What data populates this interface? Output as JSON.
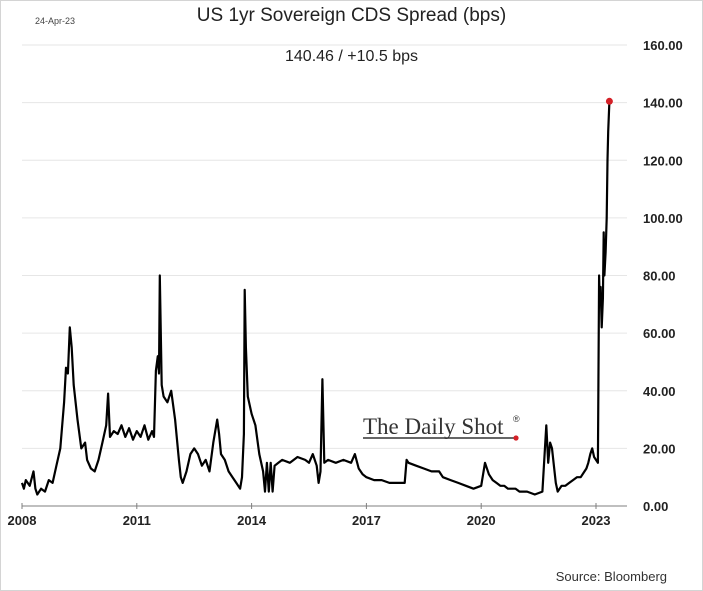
{
  "header": {
    "date": "24-Apr-23",
    "title": "US 1yr Sovereign CDS Spread (bps)",
    "subtitle": "140.46  /  +10.5 bps"
  },
  "footer": {
    "source": "Source: Bloomberg"
  },
  "watermark": {
    "text": "The Daily Shot",
    "mark": "®"
  },
  "colors": {
    "line": "#000000",
    "endpoint": "#d42027",
    "grid": "#e6e6e6",
    "axis": "#7f7f7f"
  },
  "chart_data": {
    "type": "line",
    "title": "US 1yr Sovereign CDS Spread (bps)",
    "xlabel": "",
    "ylabel": "",
    "xlim": [
      2008,
      2023.9
    ],
    "ylim": [
      0,
      160
    ],
    "grid": true,
    "y_axis_side": "right",
    "x_ticks": [
      2008,
      2011,
      2014,
      2017,
      2020,
      2023
    ],
    "x_tick_labels": [
      "2008",
      "2011",
      "2014",
      "2017",
      "2020",
      "2023"
    ],
    "y_ticks": [
      0,
      20,
      40,
      60,
      80,
      100,
      120,
      140,
      160
    ],
    "y_tick_labels": [
      "0.00",
      "20.00",
      "40.00",
      "60.00",
      "80.00",
      "100.00",
      "120.00",
      "140.00",
      "160.00"
    ],
    "last_value": 140.46,
    "last_change": "+10.5 bps",
    "series": [
      {
        "name": "US 1yr Sovereign CDS Spread",
        "x": [
          2008.0,
          2008.05,
          2008.1,
          2008.2,
          2008.3,
          2008.35,
          2008.4,
          2008.5,
          2008.6,
          2008.7,
          2008.8,
          2008.9,
          2009.0,
          2009.05,
          2009.1,
          2009.15,
          2009.2,
          2009.25,
          2009.3,
          2009.35,
          2009.45,
          2009.55,
          2009.65,
          2009.7,
          2009.8,
          2009.9,
          2010.0,
          2010.1,
          2010.2,
          2010.25,
          2010.3,
          2010.4,
          2010.5,
          2010.6,
          2010.7,
          2010.8,
          2010.9,
          2011.0,
          2011.1,
          2011.2,
          2011.3,
          2011.4,
          2011.45,
          2011.5,
          2011.55,
          2011.58,
          2011.6,
          2011.65,
          2011.7,
          2011.8,
          2011.9,
          2012.0,
          2012.1,
          2012.15,
          2012.2,
          2012.3,
          2012.4,
          2012.5,
          2012.6,
          2012.7,
          2012.8,
          2012.9,
          2013.0,
          2013.1,
          2013.15,
          2013.2,
          2013.3,
          2013.4,
          2013.5,
          2013.6,
          2013.7,
          2013.75,
          2013.8,
          2013.82,
          2013.85,
          2013.9,
          2014.0,
          2014.1,
          2014.2,
          2014.3,
          2014.35,
          2014.4,
          2014.45,
          2014.5,
          2014.55,
          2014.6,
          2014.7,
          2014.8,
          2015.0,
          2015.2,
          2015.4,
          2015.5,
          2015.6,
          2015.7,
          2015.75,
          2015.8,
          2015.85,
          2015.9,
          2016.0,
          2016.2,
          2016.4,
          2016.6,
          2016.7,
          2016.8,
          2016.9,
          2017.0,
          2017.2,
          2017.4,
          2017.6,
          2017.8,
          2018.0,
          2018.05,
          2018.1,
          2018.3,
          2018.5,
          2018.7,
          2018.9,
          2019.0,
          2019.2,
          2019.4,
          2019.6,
          2019.8,
          2020.0,
          2020.1,
          2020.2,
          2020.3,
          2020.4,
          2020.5,
          2020.6,
          2020.7,
          2020.8,
          2020.9,
          2021.0,
          2021.2,
          2021.4,
          2021.6,
          2021.7,
          2021.75,
          2021.8,
          2021.85,
          2021.9,
          2021.95,
          2022.0,
          2022.05,
          2022.1,
          2022.2,
          2022.3,
          2022.4,
          2022.5,
          2022.6,
          2022.7,
          2022.75,
          2022.8,
          2022.85,
          2022.9,
          2022.95,
          2023.0,
          2023.05,
          2023.08,
          2023.1,
          2023.12,
          2023.15,
          2023.18,
          2023.2,
          2023.22,
          2023.25,
          2023.28,
          2023.3,
          2023.32,
          2023.35
        ],
        "y": [
          8,
          6,
          9,
          7,
          12,
          6,
          4,
          6,
          5,
          9,
          8,
          14,
          20,
          28,
          36,
          48,
          46,
          62,
          55,
          42,
          30,
          20,
          22,
          16,
          13,
          12,
          16,
          22,
          28,
          39,
          24,
          26,
          25,
          28,
          24,
          27,
          23,
          26,
          24,
          28,
          23,
          26,
          24,
          47,
          52,
          46,
          80,
          42,
          38,
          36,
          40,
          30,
          16,
          10,
          8,
          12,
          18,
          20,
          18,
          14,
          16,
          12,
          22,
          30,
          25,
          18,
          16,
          12,
          10,
          8,
          6,
          10,
          25,
          75,
          55,
          38,
          32,
          28,
          18,
          12,
          5,
          15,
          5,
          15,
          5,
          14,
          15,
          16,
          15,
          17,
          16,
          15,
          18,
          14,
          8,
          12,
          44,
          15,
          16,
          15,
          16,
          15,
          18,
          13,
          11,
          10,
          9,
          9,
          8,
          8,
          8,
          16,
          15,
          14,
          13,
          12,
          12,
          10,
          9,
          8,
          7,
          6,
          7,
          15,
          11,
          9,
          8,
          7,
          7,
          6,
          6,
          6,
          5,
          5,
          4,
          5,
          28,
          15,
          22,
          20,
          14,
          8,
          5,
          6,
          7,
          7,
          8,
          9,
          10,
          10,
          12,
          13,
          15,
          18,
          20,
          17,
          16,
          15,
          80,
          70,
          76,
          62,
          72,
          95,
          80,
          88,
          100,
          120,
          130,
          140.46
        ]
      }
    ]
  }
}
